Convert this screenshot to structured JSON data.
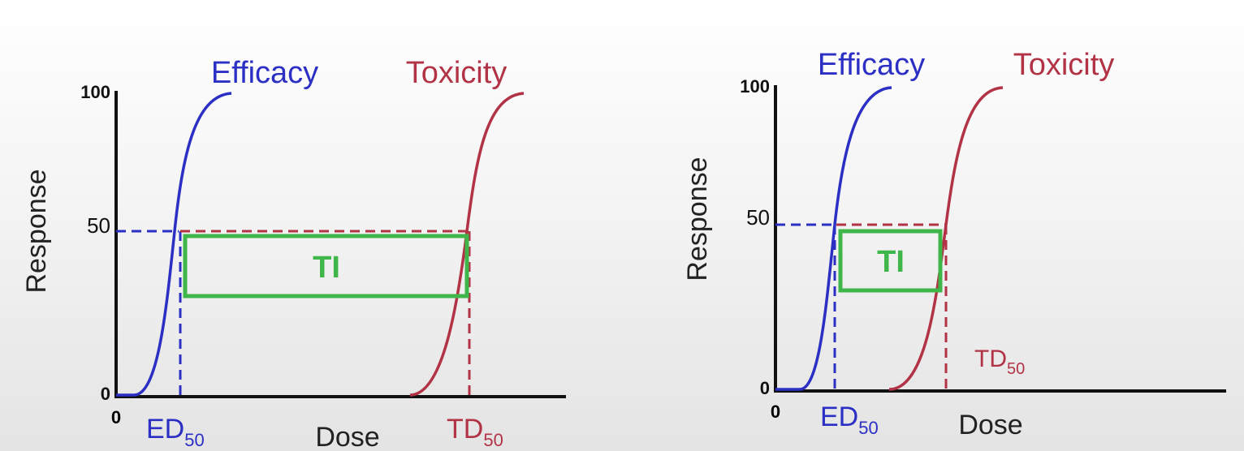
{
  "panels": [
    {
      "y_axis_label": "Response",
      "y_ticks": [
        "100",
        "50",
        "0"
      ],
      "x_origin": "0",
      "x_axis_label": "Dose",
      "efficacy_label": "Efficacy",
      "toxicity_label": "Toxicity",
      "ti_label": "TI",
      "ed50": {
        "main": "ED",
        "sub": "50"
      },
      "td50": {
        "main": "TD",
        "sub": "50"
      }
    },
    {
      "y_axis_label": "Response",
      "y_ticks": [
        "100",
        "50",
        "0"
      ],
      "x_origin": "0",
      "x_axis_label": "Dose",
      "efficacy_label": "Efficacy",
      "toxicity_label": "Toxicity",
      "ti_label": "TI",
      "ed50": {
        "main": "ED",
        "sub": "50"
      },
      "td50": {
        "main": "TD",
        "sub": "50"
      }
    }
  ]
}
